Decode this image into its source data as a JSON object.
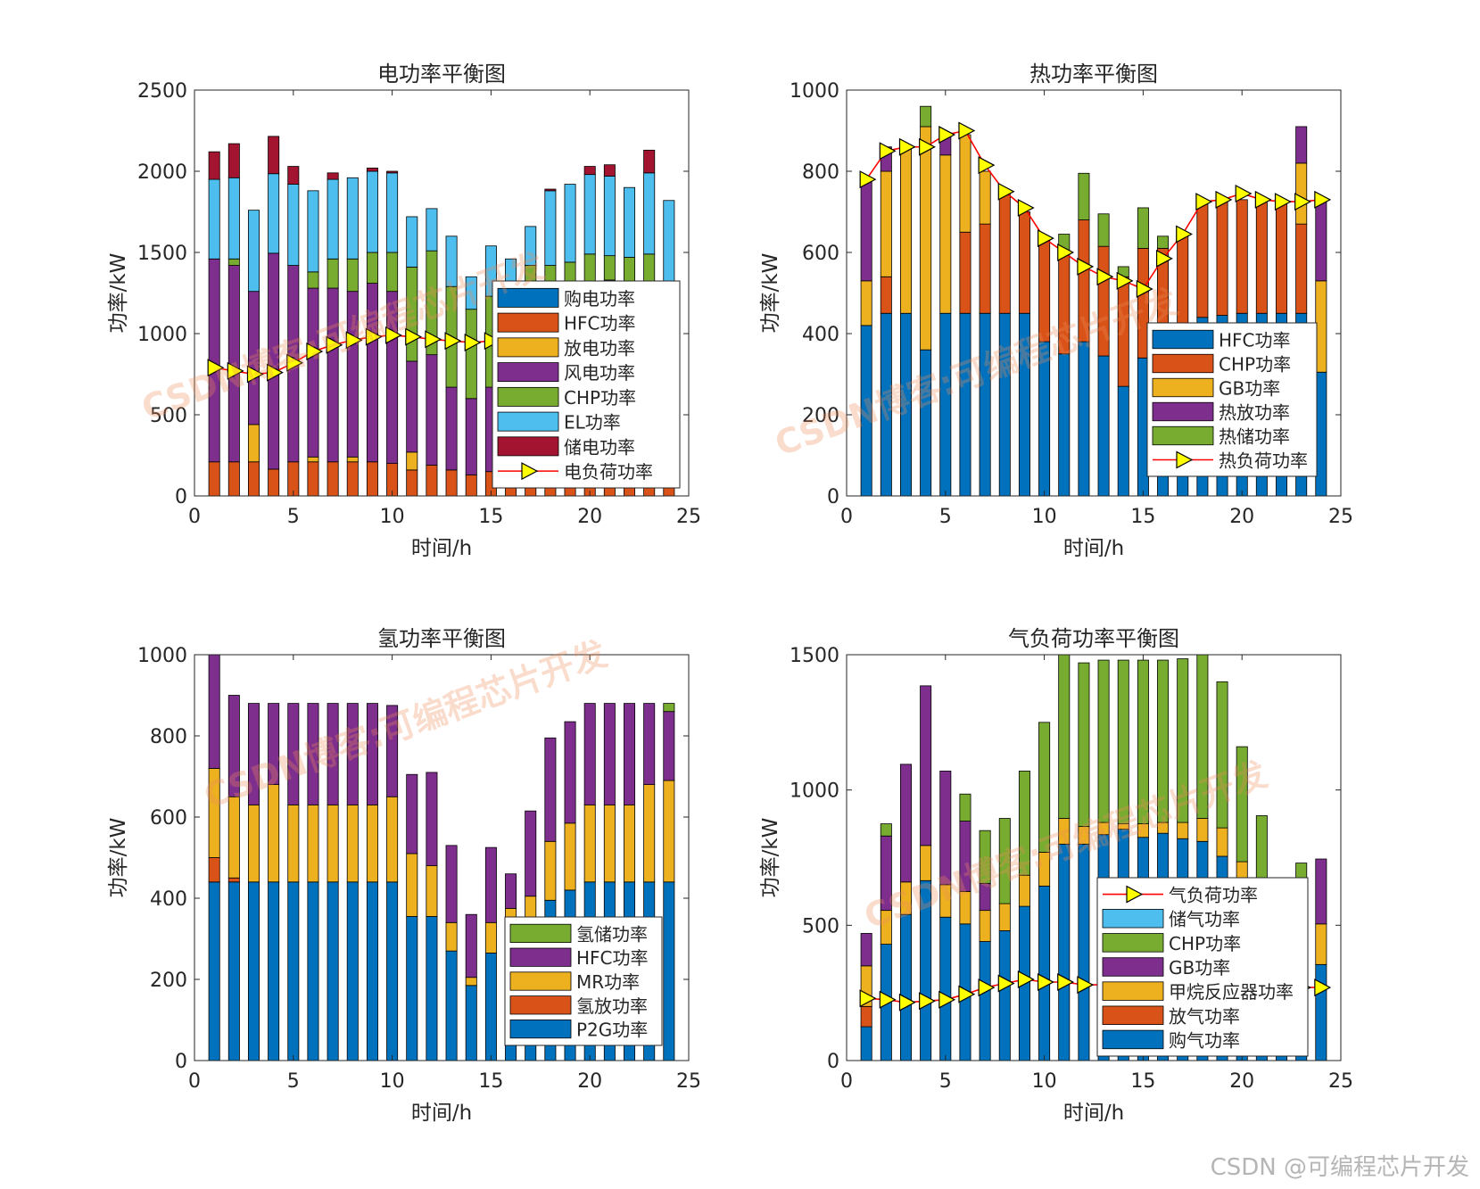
{
  "watermark": {
    "corner": "CSDN @可编程芯片开发",
    "overlay": "CSDN博客:可编程芯片开发"
  },
  "chart_data": [
    {
      "type": "bar",
      "stacked": true,
      "title": "电功率平衡图",
      "xlabel": "时间/h",
      "ylabel": "功率/kW",
      "xlim": [
        0,
        25
      ],
      "ylim": [
        0,
        2500
      ],
      "xticks": [
        0,
        5,
        10,
        15,
        20,
        25
      ],
      "yticks": [
        0,
        500,
        1000,
        1500,
        2000,
        2500
      ],
      "x": [
        1,
        2,
        3,
        4,
        5,
        6,
        7,
        8,
        9,
        10,
        11,
        12,
        13,
        14,
        15,
        16,
        17,
        18,
        19,
        20,
        21,
        22,
        23,
        24
      ],
      "legend_position": "bottom-right",
      "series": [
        {
          "name": "购电功率",
          "color": "#0072bd",
          "values": [
            0,
            0,
            0,
            0,
            0,
            0,
            0,
            0,
            0,
            0,
            0,
            0,
            0,
            0,
            0,
            0,
            0,
            0,
            0,
            0,
            0,
            0,
            0,
            0
          ]
        },
        {
          "name": "HFC功率",
          "color": "#d95319",
          "values": [
            210,
            210,
            210,
            165,
            210,
            210,
            210,
            210,
            210,
            200,
            160,
            190,
            160,
            130,
            150,
            130,
            120,
            140,
            160,
            200,
            200,
            200,
            190,
            140
          ]
        },
        {
          "name": "放电功率",
          "color": "#edb120",
          "values": [
            0,
            0,
            230,
            0,
            0,
            30,
            0,
            30,
            0,
            0,
            110,
            0,
            0,
            0,
            0,
            0,
            0,
            0,
            0,
            0,
            0,
            0,
            0,
            90
          ]
        },
        {
          "name": "风电功率",
          "color": "#7e2f8e",
          "values": [
            1250,
            1210,
            820,
            1330,
            1210,
            1040,
            1070,
            1020,
            1100,
            1060,
            560,
            680,
            510,
            470,
            520,
            600,
            800,
            1080,
            1150,
            1100,
            1130,
            1100,
            1100,
            1090
          ]
        },
        {
          "name": "CHP功率",
          "color": "#77ac30",
          "values": [
            0,
            40,
            0,
            0,
            0,
            100,
            180,
            200,
            190,
            240,
            580,
            640,
            620,
            550,
            560,
            540,
            500,
            200,
            130,
            190,
            150,
            170,
            200,
            0
          ]
        },
        {
          "name": "EL功率",
          "color": "#4dbeee",
          "values": [
            490,
            500,
            500,
            490,
            500,
            500,
            490,
            500,
            500,
            490,
            310,
            260,
            310,
            200,
            310,
            190,
            240,
            460,
            480,
            490,
            490,
            430,
            500,
            500
          ]
        },
        {
          "name": "储电功率",
          "color": "#a2142f",
          "values": [
            170,
            210,
            0,
            230,
            110,
            0,
            40,
            0,
            20,
            10,
            0,
            0,
            0,
            0,
            0,
            0,
            0,
            10,
            0,
            50,
            70,
            0,
            140,
            0
          ]
        }
      ],
      "load": {
        "name": "电负荷功率",
        "color": "#ff0000",
        "marker_color": "#ffff00",
        "values": [
          790,
          770,
          750,
          760,
          820,
          890,
          930,
          960,
          980,
          990,
          980,
          965,
          955,
          945,
          955,
          950,
          955,
          965,
          965,
          975,
          980,
          985,
          985,
          830
        ]
      }
    },
    {
      "type": "bar",
      "stacked": true,
      "title": "热功率平衡图",
      "xlabel": "时间/h",
      "ylabel": "功率/kW",
      "xlim": [
        0,
        25
      ],
      "ylim": [
        0,
        1000
      ],
      "xticks": [
        0,
        5,
        10,
        15,
        20,
        25
      ],
      "yticks": [
        0,
        200,
        400,
        600,
        800,
        1000
      ],
      "x": [
        1,
        2,
        3,
        4,
        5,
        6,
        7,
        8,
        9,
        10,
        11,
        12,
        13,
        14,
        15,
        16,
        17,
        18,
        19,
        20,
        21,
        22,
        23,
        24
      ],
      "legend_position": "bottom-right",
      "series": [
        {
          "name": "HFC功率",
          "color": "#0072bd",
          "values": [
            420,
            450,
            450,
            360,
            450,
            450,
            450,
            450,
            450,
            380,
            350,
            380,
            345,
            270,
            340,
            390,
            420,
            440,
            445,
            450,
            450,
            450,
            450,
            305
          ]
        },
        {
          "name": "CHP功率",
          "color": "#d95319",
          "values": [
            0,
            90,
            0,
            0,
            0,
            200,
            220,
            300,
            250,
            250,
            250,
            300,
            270,
            270,
            270,
            220,
            220,
            280,
            280,
            280,
            280,
            280,
            220,
            0
          ]
        },
        {
          "name": "GB功率",
          "color": "#edb120",
          "values": [
            110,
            260,
            410,
            550,
            390,
            240,
            130,
            0,
            0,
            0,
            0,
            0,
            0,
            0,
            0,
            0,
            0,
            0,
            0,
            0,
            0,
            0,
            150,
            225
          ]
        },
        {
          "name": "热放功率",
          "color": "#7e2f8e",
          "values": [
            250,
            60,
            0,
            0,
            50,
            0,
            0,
            0,
            0,
            0,
            0,
            0,
            0,
            0,
            0,
            0,
            0,
            0,
            0,
            0,
            0,
            0,
            90,
            200
          ]
        },
        {
          "name": "热储功率",
          "color": "#77ac30",
          "values": [
            0,
            0,
            0,
            50,
            0,
            0,
            0,
            0,
            0,
            0,
            45,
            115,
            80,
            25,
            100,
            30,
            0,
            0,
            0,
            0,
            0,
            0,
            0,
            0
          ]
        }
      ],
      "load": {
        "name": "热负荷功率",
        "color": "#ff0000",
        "marker_color": "#ffff00",
        "values": [
          780,
          850,
          860,
          860,
          890,
          900,
          815,
          750,
          710,
          635,
          600,
          565,
          540,
          530,
          510,
          585,
          645,
          725,
          730,
          745,
          730,
          725,
          725,
          730
        ]
      }
    },
    {
      "type": "bar",
      "stacked": true,
      "title": "氢功率平衡图",
      "xlabel": "时间/h",
      "ylabel": "功率/kW",
      "xlim": [
        0,
        25
      ],
      "ylim": [
        0,
        1000
      ],
      "xticks": [
        0,
        5,
        10,
        15,
        20,
        25
      ],
      "yticks": [
        0,
        200,
        400,
        600,
        800,
        1000
      ],
      "x": [
        1,
        2,
        3,
        4,
        5,
        6,
        7,
        8,
        9,
        10,
        11,
        12,
        13,
        14,
        15,
        16,
        17,
        18,
        19,
        20,
        21,
        22,
        23,
        24
      ],
      "legend_position": "bottom-right",
      "series": [
        {
          "name": "P2G功率",
          "color": "#0072bd",
          "values": [
            440,
            440,
            440,
            440,
            440,
            440,
            440,
            440,
            440,
            440,
            355,
            355,
            270,
            185,
            265,
            280,
            330,
            395,
            420,
            440,
            440,
            440,
            440,
            440
          ]
        },
        {
          "name": "氢放功率",
          "color": "#d95319",
          "values": [
            60,
            10,
            0,
            0,
            0,
            0,
            0,
            0,
            0,
            0,
            0,
            0,
            0,
            0,
            0,
            0,
            0,
            0,
            0,
            0,
            0,
            0,
            0,
            0
          ]
        },
        {
          "name": "MR功率",
          "color": "#edb120",
          "values": [
            220,
            200,
            190,
            240,
            190,
            190,
            190,
            190,
            190,
            210,
            155,
            125,
            70,
            20,
            75,
            95,
            75,
            145,
            165,
            190,
            190,
            190,
            240,
            250
          ]
        },
        {
          "name": "HFC功率",
          "color": "#7e2f8e",
          "values": [
            280,
            250,
            250,
            200,
            250,
            250,
            250,
            250,
            250,
            225,
            195,
            230,
            190,
            155,
            185,
            85,
            210,
            255,
            250,
            250,
            250,
            250,
            200,
            170
          ]
        },
        {
          "name": "氢储功率",
          "color": "#77ac30",
          "values": [
            0,
            0,
            0,
            0,
            0,
            0,
            0,
            0,
            0,
            0,
            0,
            0,
            0,
            0,
            0,
            0,
            0,
            0,
            0,
            0,
            0,
            0,
            0,
            20
          ]
        }
      ]
    },
    {
      "type": "bar",
      "stacked": true,
      "title": "气负荷功率平衡图",
      "xlabel": "时间/h",
      "ylabel": "功率/kW",
      "xlim": [
        0,
        25
      ],
      "ylim": [
        0,
        1500
      ],
      "xticks": [
        0,
        5,
        10,
        15,
        20,
        25
      ],
      "yticks": [
        0,
        500,
        1000,
        1500
      ],
      "x": [
        1,
        2,
        3,
        4,
        5,
        6,
        7,
        8,
        9,
        10,
        11,
        12,
        13,
        14,
        15,
        16,
        17,
        18,
        19,
        20,
        21,
        22,
        23,
        24
      ],
      "legend_position": "bottom-right",
      "series": [
        {
          "name": "购气功率",
          "color": "#0072bd",
          "values": [
            125,
            430,
            540,
            665,
            530,
            505,
            440,
            480,
            570,
            645,
            800,
            800,
            835,
            855,
            825,
            840,
            820,
            810,
            755,
            645,
            520,
            440,
            370,
            355
          ]
        },
        {
          "name": "放气功率",
          "color": "#d95319",
          "values": [
            75,
            0,
            0,
            0,
            0,
            0,
            0,
            0,
            0,
            0,
            0,
            0,
            0,
            0,
            0,
            0,
            0,
            0,
            0,
            0,
            0,
            0,
            0,
            0
          ]
        },
        {
          "name": "甲烷反应器功率",
          "color": "#edb120",
          "values": [
            150,
            125,
            120,
            130,
            120,
            120,
            115,
            100,
            115,
            125,
            95,
            65,
            45,
            20,
            50,
            40,
            60,
            85,
            105,
            90,
            70,
            60,
            60,
            150
          ]
        },
        {
          "name": "GB功率",
          "color": "#7e2f8e",
          "values": [
            120,
            275,
            435,
            590,
            420,
            260,
            100,
            0,
            0,
            0,
            0,
            0,
            0,
            0,
            0,
            0,
            0,
            0,
            0,
            0,
            0,
            0,
            0,
            240
          ]
        },
        {
          "name": "CHP功率",
          "color": "#77ac30",
          "values": [
            0,
            45,
            0,
            0,
            0,
            100,
            195,
            315,
            385,
            480,
            610,
            605,
            600,
            605,
            605,
            600,
            605,
            610,
            540,
            425,
            315,
            80,
            300,
            0
          ]
        },
        {
          "name": "储气功率",
          "color": "#4dbeee",
          "values": [
            0,
            0,
            0,
            0,
            0,
            0,
            0,
            0,
            0,
            0,
            0,
            0,
            0,
            0,
            0,
            0,
            0,
            0,
            0,
            0,
            0,
            0,
            0,
            0
          ]
        }
      ],
      "load": {
        "name": "气负荷功率",
        "color": "#ff0000",
        "marker_color": "#ffff00",
        "values": [
          230,
          225,
          215,
          220,
          225,
          245,
          270,
          285,
          300,
          290,
          290,
          280,
          280,
          285,
          285,
          280,
          275,
          270,
          270,
          270,
          270,
          270,
          270,
          270
        ]
      }
    }
  ]
}
